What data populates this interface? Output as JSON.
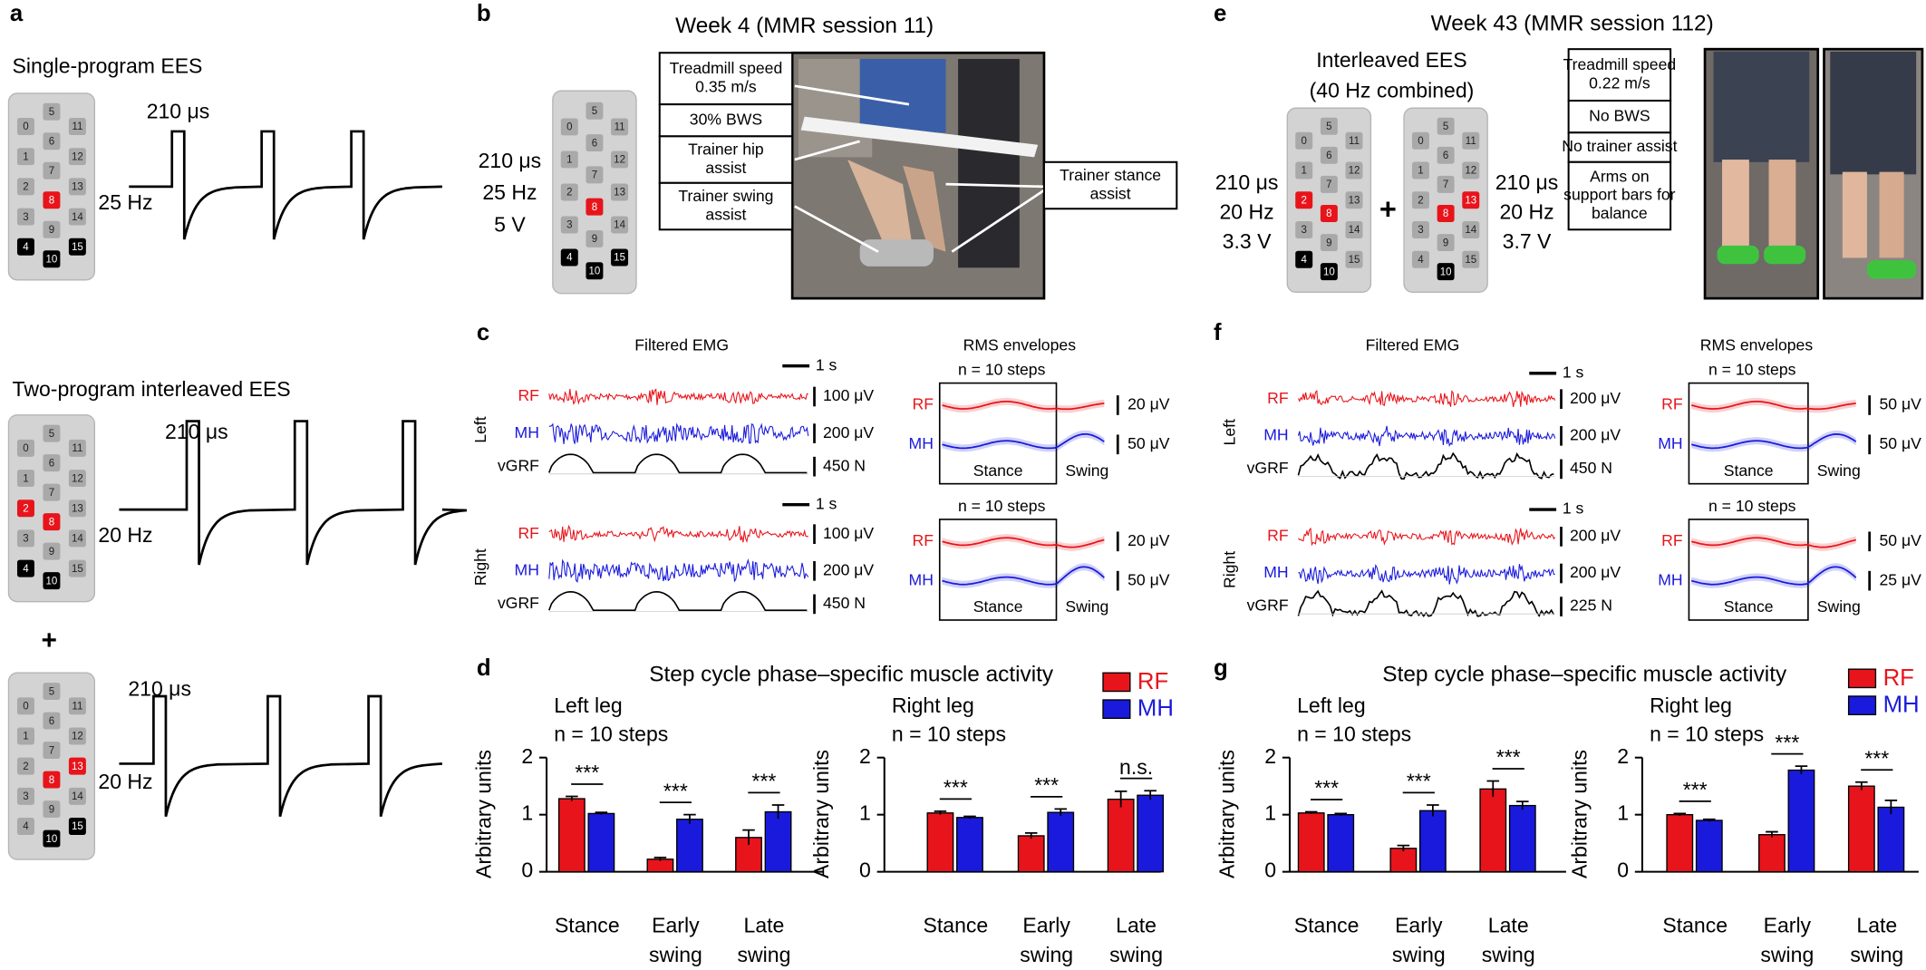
{
  "panels": {
    "a": {
      "letter": "a",
      "single_title": "Single-program EES",
      "interleaved_title": "Two-program interleaved EES",
      "plus": "+",
      "pulse_width": "210 μs",
      "freq_single": "25 Hz",
      "freq_interleaved": "20 Hz"
    },
    "b": {
      "letter": "b",
      "title": "Week 4 (MMR session 11)",
      "stim": [
        "210 μs",
        "25 Hz",
        "5 V"
      ],
      "boxes": [
        [
          "Treadmill speed",
          "0.35 m/s"
        ],
        [
          "30% BWS"
        ],
        [
          "Trainer hip",
          "assist"
        ],
        [
          "Trainer swing",
          "assist"
        ],
        [
          "Trainer stance",
          "assist"
        ]
      ]
    },
    "e": {
      "letter": "e",
      "title": "Week 43 (MMR session 112)",
      "subtitle": [
        "Interleaved EES",
        "(40 Hz combined)"
      ],
      "plus": "+",
      "stim_left": [
        "210 μs",
        "20 Hz",
        "3.3 V"
      ],
      "stim_right": [
        "210 μs",
        "20 Hz",
        "3.7 V"
      ],
      "boxes": [
        [
          "Treadmill speed",
          "0.22 m/s"
        ],
        [
          "No BWS"
        ],
        [
          "No trainer assist"
        ],
        [
          "Arms on",
          "support bars for",
          "balance"
        ]
      ]
    },
    "c": {
      "letter": "c",
      "emg_title": "Filtered EMG",
      "rms_title": "RMS envelopes",
      "rows": [
        {
          "side": "Left",
          "time_scale": "1 s",
          "signals": [
            "RF",
            "MH",
            "vGRF"
          ],
          "emg_scales": [
            "100 μV",
            "200 μV",
            "450 N"
          ],
          "steps": "n = 10 steps",
          "rms_scales": [
            "20 μV",
            "50 μV"
          ],
          "phases": [
            "Stance",
            "Swing"
          ]
        },
        {
          "side": "Right",
          "time_scale": "1 s",
          "signals": [
            "RF",
            "MH",
            "vGRF"
          ],
          "emg_scales": [
            "100 μV",
            "200 μV",
            "450 N"
          ],
          "steps": "n = 10 steps",
          "rms_scales": [
            "20 μV",
            "50 μV"
          ],
          "phases": [
            "Stance",
            "Swing"
          ]
        }
      ]
    },
    "f": {
      "letter": "f",
      "emg_title": "Filtered EMG",
      "rms_title": "RMS envelopes",
      "rows": [
        {
          "side": "Left",
          "time_scale": "1 s",
          "signals": [
            "RF",
            "MH",
            "vGRF"
          ],
          "emg_scales": [
            "200 μV",
            "200 μV",
            "450 N"
          ],
          "steps": "n = 10 steps",
          "rms_scales": [
            "50 μV",
            "50 μV"
          ],
          "phases": [
            "Stance",
            "Swing"
          ]
        },
        {
          "side": "Right",
          "time_scale": "1 s",
          "signals": [
            "RF",
            "MH",
            "vGRF"
          ],
          "emg_scales": [
            "200 μV",
            "200 μV",
            "225 N"
          ],
          "steps": "n = 10 steps",
          "rms_scales": [
            "50 μV",
            "25 μV"
          ],
          "phases": [
            "Stance",
            "Swing"
          ]
        }
      ]
    },
    "d": {
      "letter": "d"
    },
    "g": {
      "letter": "g"
    }
  },
  "electrodes": [
    "0",
    "1",
    "2",
    "3",
    "4",
    "5",
    "6",
    "7",
    "8",
    "9",
    "10",
    "11",
    "12",
    "13",
    "14",
    "15"
  ],
  "arrays": [
    {
      "red": [
        8
      ],
      "black": [
        4,
        10,
        15
      ]
    },
    {
      "red": [
        2,
        8
      ],
      "black": [
        4,
        10
      ]
    },
    {
      "red": [
        8,
        13
      ],
      "black": [
        10,
        15
      ]
    },
    {
      "red": [
        8
      ],
      "black": [
        4,
        10,
        15
      ]
    },
    {
      "red": [
        2,
        8
      ],
      "black": [
        4,
        10
      ]
    },
    {
      "red": [
        8,
        13
      ],
      "black": [
        10
      ]
    }
  ],
  "chart_data": [
    {
      "type": "bar",
      "title": "Step cycle phase–specific muscle activity",
      "subtitle": "Left leg",
      "steps": "n = 10 steps",
      "ylabel": "Arbitrary units",
      "categories": [
        "Stance",
        "Early swing",
        "Late swing"
      ],
      "ylim": [
        0,
        2
      ],
      "yticks": [
        0,
        1,
        2
      ],
      "significance": [
        "***",
        "***",
        "***"
      ],
      "series": [
        {
          "name": "RF",
          "color": "#e8141b",
          "values": [
            1.28,
            0.22,
            0.6
          ],
          "errors": [
            0.04,
            0.03,
            0.13
          ]
        },
        {
          "name": "MH",
          "color": "#1a1adc",
          "values": [
            1.02,
            0.92,
            1.05
          ],
          "errors": [
            0.02,
            0.08,
            0.12
          ]
        }
      ]
    },
    {
      "type": "bar",
      "subtitle": "Right leg",
      "steps": "n = 10 steps",
      "ylabel": "Arbitrary units",
      "categories": [
        "Stance",
        "Early swing",
        "Late swing"
      ],
      "ylim": [
        0,
        2
      ],
      "yticks": [
        0,
        1,
        2
      ],
      "significance": [
        "***",
        "***",
        "n.s."
      ],
      "series": [
        {
          "name": "RF",
          "color": "#e8141b",
          "values": [
            1.03,
            0.63,
            1.27
          ],
          "errors": [
            0.03,
            0.05,
            0.14
          ]
        },
        {
          "name": "MH",
          "color": "#1a1adc",
          "values": [
            0.95,
            1.04,
            1.34
          ],
          "errors": [
            0.02,
            0.06,
            0.08
          ]
        }
      ]
    },
    {
      "type": "bar",
      "title": "Step cycle phase–specific muscle activity",
      "subtitle": "Left leg",
      "steps": "n = 10 steps",
      "ylabel": "Arbitrary units",
      "categories": [
        "Stance",
        "Early swing",
        "Late swing"
      ],
      "ylim": [
        0,
        2
      ],
      "yticks": [
        0,
        1,
        2
      ],
      "significance": [
        "***",
        "***",
        "***"
      ],
      "series": [
        {
          "name": "RF",
          "color": "#e8141b",
          "values": [
            1.03,
            0.41,
            1.45
          ],
          "errors": [
            0.02,
            0.05,
            0.14
          ]
        },
        {
          "name": "MH",
          "color": "#1a1adc",
          "values": [
            1.0,
            1.07,
            1.16
          ],
          "errors": [
            0.02,
            0.1,
            0.07
          ]
        }
      ]
    },
    {
      "type": "bar",
      "subtitle": "Right leg",
      "steps": "n = 10 steps",
      "ylabel": "Arbitrary units",
      "categories": [
        "Stance",
        "Early swing",
        "Late swing"
      ],
      "ylim": [
        0,
        2
      ],
      "yticks": [
        0,
        1,
        2
      ],
      "significance": [
        "***",
        "***",
        "***"
      ],
      "series": [
        {
          "name": "RF",
          "color": "#e8141b",
          "values": [
            1.0,
            0.65,
            1.5
          ],
          "errors": [
            0.02,
            0.05,
            0.07
          ]
        },
        {
          "name": "MH",
          "color": "#1a1adc",
          "values": [
            0.9,
            1.78,
            1.13
          ],
          "errors": [
            0.02,
            0.07,
            0.12
          ]
        }
      ]
    }
  ]
}
